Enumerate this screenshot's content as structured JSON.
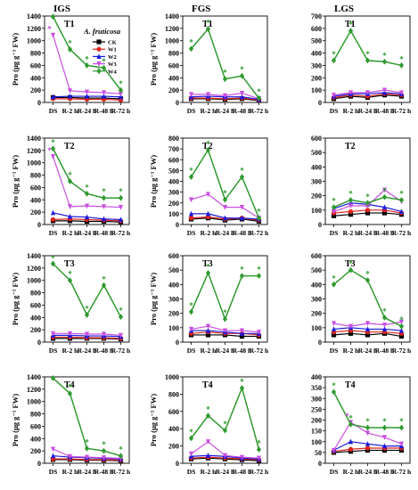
{
  "column_titles": [
    "IGS",
    "FGS",
    "LGS"
  ],
  "species_label": "A. fruticosa",
  "legend": [
    {
      "name": "CK",
      "color": "#000000",
      "marker": "square"
    },
    {
      "name": "W1",
      "color": "#e0231b",
      "marker": "circle"
    },
    {
      "name": "W2",
      "color": "#1a1adb",
      "marker": "triangle"
    },
    {
      "name": "W3",
      "color": "#c94fe0",
      "marker": "triangle-down"
    },
    {
      "name": "W4",
      "color": "#2f9a2f",
      "marker": "diamond"
    }
  ],
  "chart_data": [
    {
      "id": "IGS-T1",
      "type": "line",
      "panel_title": "T1",
      "ylabel": "Pro (μg g⁻¹ FW)",
      "ylim": [
        0,
        1400
      ],
      "yticks": [
        0,
        200,
        400,
        600,
        800,
        1000,
        1200,
        1400
      ],
      "categories": [
        "DS",
        "R-2 h",
        "R-24 h",
        "R-48 h",
        "R-72 h"
      ],
      "series": [
        {
          "name": "CK",
          "values": [
            80,
            80,
            70,
            70,
            60
          ]
        },
        {
          "name": "W1",
          "values": [
            60,
            60,
            50,
            50,
            40
          ]
        },
        {
          "name": "W2",
          "values": [
            90,
            100,
            100,
            100,
            90
          ]
        },
        {
          "name": "W3",
          "values": [
            1090,
            190,
            170,
            160,
            140
          ]
        },
        {
          "name": "W4",
          "values": [
            1390,
            860,
            600,
            560,
            200
          ]
        }
      ],
      "annotations": [
        {
          "text": "*",
          "series": "W4",
          "points": [
            0,
            1,
            2,
            3,
            4
          ]
        },
        {
          "text": "*",
          "series": "W3",
          "points": [
            0
          ]
        }
      ]
    },
    {
      "id": "FGS-T1",
      "type": "line",
      "panel_title": "T1",
      "ylabel": "Pro (μg g⁻¹ FW)",
      "ylim": [
        0,
        1400
      ],
      "yticks": [
        0,
        200,
        400,
        600,
        800,
        1000,
        1200,
        1400
      ],
      "categories": [
        "DS",
        "R-2 h",
        "R-24 h",
        "R-48 h",
        "R-72 h"
      ],
      "series": [
        {
          "name": "CK",
          "values": [
            60,
            60,
            50,
            60,
            30
          ]
        },
        {
          "name": "W1",
          "values": [
            70,
            70,
            60,
            70,
            40
          ]
        },
        {
          "name": "W2",
          "values": [
            90,
            100,
            90,
            90,
            50
          ]
        },
        {
          "name": "W3",
          "values": [
            130,
            130,
            110,
            150,
            60
          ]
        },
        {
          "name": "W4",
          "values": [
            870,
            1190,
            380,
            430,
            70
          ]
        }
      ],
      "annotations": [
        {
          "text": "*",
          "series": "W4",
          "points": [
            0,
            1,
            2,
            3,
            4
          ]
        }
      ]
    },
    {
      "id": "LGS-T1",
      "type": "line",
      "panel_title": "T1",
      "ylabel": "",
      "ylim": [
        0,
        700
      ],
      "yticks": [
        0,
        100,
        200,
        300,
        400,
        500,
        600,
        700
      ],
      "categories": [
        "DS",
        "R-2 h",
        "R-24 h",
        "R-48 h",
        "R-72 h"
      ],
      "series": [
        {
          "name": "CK",
          "values": [
            30,
            50,
            40,
            60,
            50
          ]
        },
        {
          "name": "W1",
          "values": [
            40,
            60,
            50,
            70,
            60
          ]
        },
        {
          "name": "W2",
          "values": [
            50,
            70,
            70,
            80,
            70
          ]
        },
        {
          "name": "W3",
          "values": [
            60,
            80,
            80,
            100,
            80
          ]
        },
        {
          "name": "W4",
          "values": [
            340,
            580,
            340,
            330,
            300
          ]
        }
      ],
      "annotations": [
        {
          "text": "*",
          "series": "W4",
          "points": [
            0,
            1,
            2,
            3,
            4
          ]
        }
      ]
    },
    {
      "id": "IGS-T2",
      "type": "line",
      "panel_title": "T2",
      "ylabel": "Pro (μg g⁻¹ FW)",
      "ylim": [
        0,
        1400
      ],
      "yticks": [
        0,
        200,
        400,
        600,
        800,
        1000,
        1200,
        1400
      ],
      "categories": [
        "DS",
        "R-2 h",
        "R-24 h",
        "R-48 h",
        "R-72 h"
      ],
      "series": [
        {
          "name": "CK",
          "values": [
            60,
            60,
            50,
            50,
            40
          ]
        },
        {
          "name": "W1",
          "values": [
            80,
            90,
            80,
            70,
            60
          ]
        },
        {
          "name": "W2",
          "values": [
            190,
            130,
            120,
            90,
            80
          ]
        },
        {
          "name": "W3",
          "values": [
            1100,
            290,
            300,
            290,
            280
          ]
        },
        {
          "name": "W4",
          "values": [
            1230,
            700,
            500,
            430,
            430
          ]
        }
      ],
      "annotations": [
        {
          "text": "*",
          "series": "W4",
          "points": [
            0,
            1,
            2,
            3,
            4
          ]
        },
        {
          "text": "*",
          "series": "W3",
          "points": [
            0
          ]
        }
      ]
    },
    {
      "id": "FGS-T2",
      "type": "line",
      "panel_title": "T2",
      "ylabel": "Pro (μg g⁻¹ FW)",
      "ylim": [
        0,
        800
      ],
      "yticks": [
        0,
        100,
        200,
        300,
        400,
        500,
        600,
        700,
        800
      ],
      "categories": [
        "DS",
        "R-2 h",
        "R-24 h",
        "R-48 h",
        "R-72 h"
      ],
      "series": [
        {
          "name": "CK",
          "values": [
            50,
            60,
            40,
            50,
            30
          ]
        },
        {
          "name": "W1",
          "values": [
            60,
            70,
            50,
            60,
            40
          ]
        },
        {
          "name": "W2",
          "values": [
            100,
            100,
            60,
            60,
            50
          ]
        },
        {
          "name": "W3",
          "values": [
            230,
            280,
            160,
            160,
            60
          ]
        },
        {
          "name": "W4",
          "values": [
            440,
            690,
            230,
            440,
            60
          ]
        }
      ],
      "annotations": [
        {
          "text": "*",
          "series": "W4",
          "points": [
            0,
            1,
            2,
            3,
            4
          ]
        }
      ]
    },
    {
      "id": "LGS-T2",
      "type": "line",
      "panel_title": "T2",
      "ylabel": "",
      "ylim": [
        0,
        600
      ],
      "yticks": [
        0,
        100,
        200,
        300,
        400,
        500,
        600
      ],
      "categories": [
        "DS",
        "R-2 h",
        "R-24 h",
        "R-48 h",
        "R-72 h"
      ],
      "series": [
        {
          "name": "CK",
          "values": [
            60,
            70,
            80,
            80,
            70
          ]
        },
        {
          "name": "W1",
          "values": [
            80,
            90,
            100,
            100,
            80
          ]
        },
        {
          "name": "W2",
          "values": [
            110,
            150,
            140,
            120,
            90
          ]
        },
        {
          "name": "W3",
          "values": [
            90,
            130,
            130,
            240,
            160
          ]
        },
        {
          "name": "W4",
          "values": [
            120,
            170,
            150,
            190,
            170
          ]
        }
      ],
      "annotations": [
        {
          "text": "*",
          "series": "W4",
          "points": [
            0,
            1,
            2,
            3,
            4
          ]
        }
      ]
    },
    {
      "id": "IGS-T3",
      "type": "line",
      "panel_title": "T3",
      "ylabel": "Pro (μg g⁻¹ FW)",
      "ylim": [
        0,
        1400
      ],
      "yticks": [
        0,
        200,
        400,
        600,
        800,
        1000,
        1200,
        1400
      ],
      "categories": [
        "DS",
        "R-2 h",
        "R-24 h",
        "R-48 h",
        "R-72 h"
      ],
      "series": [
        {
          "name": "CK",
          "values": [
            60,
            60,
            60,
            60,
            50
          ]
        },
        {
          "name": "W1",
          "values": [
            80,
            80,
            70,
            70,
            60
          ]
        },
        {
          "name": "W2",
          "values": [
            110,
            110,
            100,
            100,
            90
          ]
        },
        {
          "name": "W3",
          "values": [
            140,
            140,
            130,
            130,
            110
          ]
        },
        {
          "name": "W4",
          "values": [
            1270,
            1000,
            440,
            920,
            410
          ]
        }
      ],
      "annotations": [
        {
          "text": "*",
          "series": "W4",
          "points": [
            0,
            1,
            2,
            3,
            4
          ]
        }
      ]
    },
    {
      "id": "FGS-T3",
      "type": "line",
      "panel_title": "T3",
      "ylabel": "Pro (μg g⁻¹ FW)",
      "ylim": [
        0,
        600
      ],
      "yticks": [
        0,
        100,
        200,
        300,
        400,
        500,
        600
      ],
      "categories": [
        "DS",
        "R-2 h",
        "R-24 h",
        "R-48 h",
        "R-72 h"
      ],
      "series": [
        {
          "name": "CK",
          "values": [
            50,
            50,
            50,
            40,
            40
          ]
        },
        {
          "name": "W1",
          "values": [
            60,
            70,
            60,
            60,
            50
          ]
        },
        {
          "name": "W2",
          "values": [
            80,
            80,
            70,
            60,
            60
          ]
        },
        {
          "name": "W3",
          "values": [
            90,
            110,
            80,
            80,
            70
          ]
        },
        {
          "name": "W4",
          "values": [
            210,
            480,
            160,
            460,
            460
          ]
        }
      ],
      "annotations": [
        {
          "text": "*",
          "series": "W4",
          "points": [
            0,
            1,
            2,
            3,
            4
          ]
        }
      ]
    },
    {
      "id": "LGS-T3",
      "type": "line",
      "panel_title": "T3",
      "ylabel": "",
      "ylim": [
        0,
        600
      ],
      "yticks": [
        0,
        100,
        200,
        300,
        400,
        500,
        600
      ],
      "categories": [
        "DS",
        "R-2 h",
        "R-24 h",
        "R-48 h",
        "R-72 h"
      ],
      "series": [
        {
          "name": "CK",
          "values": [
            50,
            60,
            50,
            60,
            40
          ]
        },
        {
          "name": "W1",
          "values": [
            70,
            80,
            70,
            70,
            60
          ]
        },
        {
          "name": "W2",
          "values": [
            90,
            100,
            90,
            90,
            80
          ]
        },
        {
          "name": "W3",
          "values": [
            130,
            110,
            130,
            120,
            140
          ]
        },
        {
          "name": "W4",
          "values": [
            400,
            500,
            430,
            170,
            110
          ]
        }
      ],
      "annotations": [
        {
          "text": "*",
          "series": "W4",
          "points": [
            0,
            1,
            2,
            3,
            4
          ]
        }
      ]
    },
    {
      "id": "IGS-T4",
      "type": "line",
      "panel_title": "T4",
      "ylabel": "Pro (μg g⁻¹ FW)",
      "ylim": [
        0,
        1400
      ],
      "yticks": [
        0,
        200,
        400,
        600,
        800,
        1000,
        1200,
        1400
      ],
      "categories": [
        "DS",
        "R-2 h",
        "R-24 h",
        "R-48 h",
        "R-72 h"
      ],
      "series": [
        {
          "name": "CK",
          "values": [
            60,
            60,
            50,
            50,
            40
          ]
        },
        {
          "name": "W1",
          "values": [
            70,
            70,
            60,
            60,
            50
          ]
        },
        {
          "name": "W2",
          "values": [
            120,
            100,
            90,
            80,
            70
          ]
        },
        {
          "name": "W3",
          "values": [
            230,
            110,
            100,
            90,
            80
          ]
        },
        {
          "name": "W4",
          "values": [
            1380,
            1130,
            240,
            200,
            120
          ]
        }
      ],
      "annotations": [
        {
          "text": "*",
          "series": "W4",
          "points": [
            0,
            1,
            2,
            3,
            4
          ]
        }
      ]
    },
    {
      "id": "FGS-T4",
      "type": "line",
      "panel_title": "T4",
      "ylabel": "Pro (μg g⁻¹ FW)",
      "ylim": [
        0,
        1000
      ],
      "yticks": [
        0,
        200,
        400,
        600,
        800,
        1000
      ],
      "categories": [
        "DS",
        "R-2 h",
        "R-24 h",
        "R-48 h",
        "R-72 h"
      ],
      "series": [
        {
          "name": "CK",
          "values": [
            50,
            60,
            50,
            40,
            30
          ]
        },
        {
          "name": "W1",
          "values": [
            60,
            70,
            60,
            50,
            40
          ]
        },
        {
          "name": "W2",
          "values": [
            80,
            90,
            80,
            60,
            50
          ]
        },
        {
          "name": "W3",
          "values": [
            110,
            250,
            90,
            70,
            60
          ]
        },
        {
          "name": "W4",
          "values": [
            290,
            550,
            380,
            870,
            160
          ]
        }
      ],
      "annotations": [
        {
          "text": "*",
          "series": "W4",
          "points": [
            0,
            1,
            2,
            3,
            4
          ]
        }
      ]
    },
    {
      "id": "LGS-T4",
      "type": "line",
      "panel_title": "T4",
      "ylabel": "",
      "ylim": [
        0,
        400
      ],
      "yticks": [
        0,
        50,
        100,
        150,
        200,
        250,
        300,
        350,
        400
      ],
      "categories": [
        "DS",
        "R-2 h",
        "R-24 h",
        "R-48 h",
        "R-72 h"
      ],
      "series": [
        {
          "name": "CK",
          "values": [
            50,
            55,
            60,
            60,
            60
          ]
        },
        {
          "name": "W1",
          "values": [
            55,
            65,
            70,
            70,
            70
          ]
        },
        {
          "name": "W2",
          "values": [
            60,
            100,
            90,
            80,
            80
          ]
        },
        {
          "name": "W3",
          "values": [
            60,
            190,
            140,
            120,
            90
          ]
        },
        {
          "name": "W4",
          "values": [
            330,
            180,
            165,
            165,
            165
          ]
        }
      ],
      "annotations": [
        {
          "text": "*",
          "series": "W4",
          "points": [
            0,
            1,
            2,
            3,
            4
          ]
        },
        {
          "text": "*",
          "series": "W3",
          "points": [
            1
          ]
        }
      ]
    }
  ]
}
